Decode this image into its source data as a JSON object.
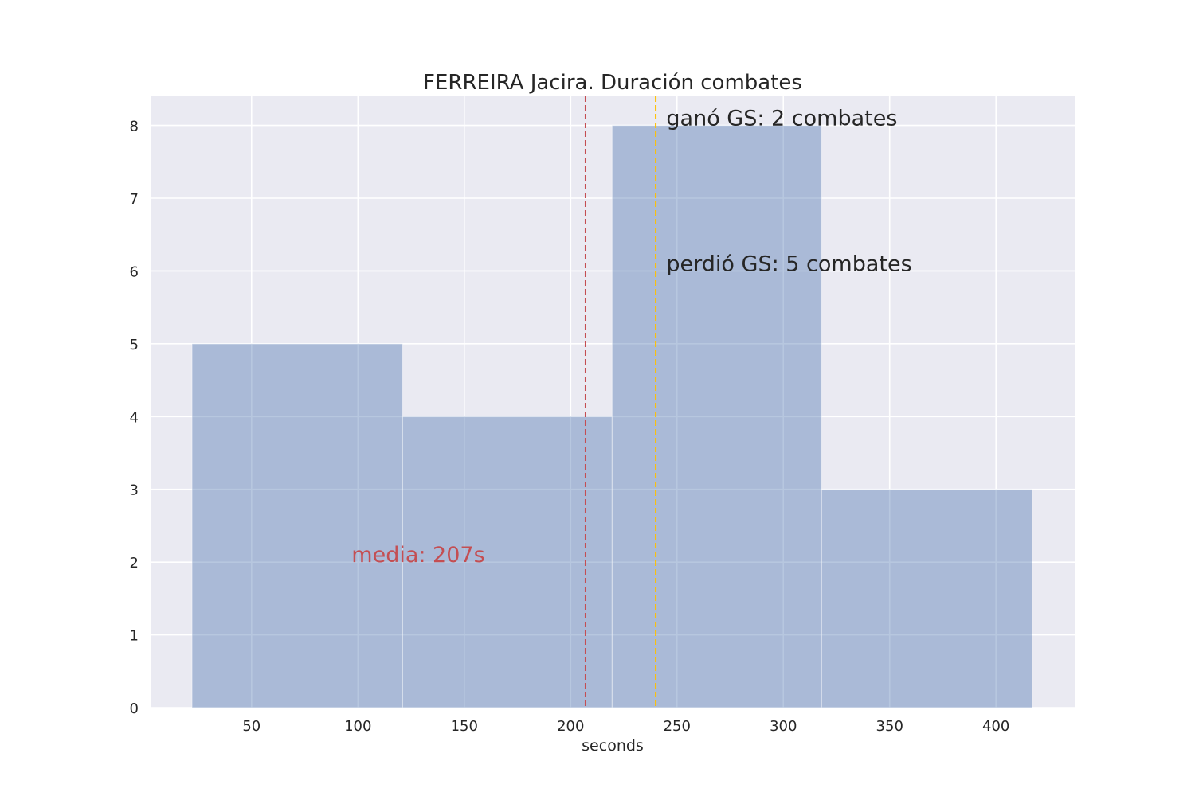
{
  "chart_data": {
    "type": "bar",
    "subtype": "histogram",
    "title": "FERREIRA Jacira. Duración combates",
    "xlabel": "seconds",
    "ylabel": "",
    "xlim": [
      2.5,
      437
    ],
    "ylim": [
      0,
      8.4
    ],
    "xticks": [
      50,
      100,
      150,
      200,
      250,
      300,
      350,
      400
    ],
    "yticks": [
      0,
      1,
      2,
      3,
      4,
      5,
      6,
      7,
      8
    ],
    "bins": [
      {
        "x0": 22,
        "x1": 121,
        "count": 5
      },
      {
        "x0": 121,
        "x1": 219.5,
        "count": 4
      },
      {
        "x0": 219.5,
        "x1": 318,
        "count": 8
      },
      {
        "x0": 318,
        "x1": 417,
        "count": 3
      }
    ],
    "bar_color": "#4c72b0",
    "background_color": "#eaeaf2",
    "grid": true,
    "vlines": [
      {
        "name": "mean",
        "x": 207,
        "color": "#c44e52"
      },
      {
        "name": "golden-score",
        "x": 240,
        "color": "#ffc000"
      }
    ],
    "annotations": [
      {
        "name": "mean-label",
        "text": "media: 207s",
        "x": 97,
        "y": 2,
        "color": "#c44e52"
      },
      {
        "name": "won-gs-label",
        "text": "ganó GS: 2 combates",
        "x": 245,
        "y": 8,
        "color": "#262626"
      },
      {
        "name": "lost-gs-label",
        "text": "perdió GS: 5 combates",
        "x": 245,
        "y": 6,
        "color": "#262626"
      }
    ]
  }
}
